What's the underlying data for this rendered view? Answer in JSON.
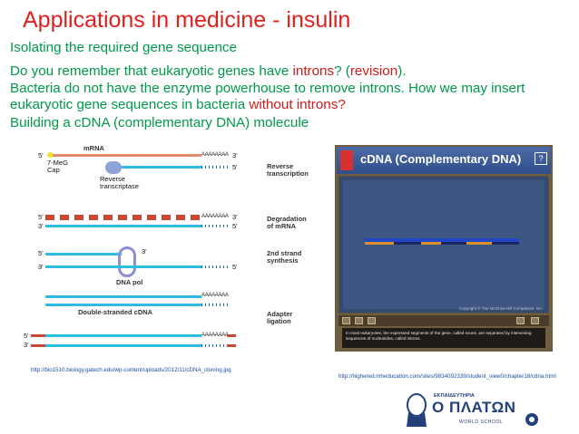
{
  "title": "Applications in medicine - insulin",
  "lines": {
    "l1": "Isolating the required gene sequence",
    "l2_pre": "Do you remember that eukaryotic genes have ",
    "l2_introns": "introns",
    "l2_mid": "? (",
    "l2_rev": "revision",
    "l2_post": ").",
    "l3": "Bacteria do not have the enzyme powerhouse to remove introns. How we may insert",
    "l4_pre": "eukaryotic gene sequences in bacteria ",
    "l4_red": "without introns?",
    "l5": "Building a cDNA (complementary DNA) molecule"
  },
  "fig_left": {
    "mrna": "mRNA",
    "cap": "7-MeG Cap",
    "reverse_transcriptase": "Reverse transcriptase",
    "reverse_transcription": "Reverse transcription",
    "degradation": "Degradation of mRNA",
    "second_strand": "2nd strand synthesis",
    "dna_pol": "DNA pol",
    "double_stranded": "Double-stranded cDNA",
    "adapter": "Adapter ligation",
    "polyA": "AAAAAAAA",
    "polyT": "TTTTTTTT",
    "five": "5'",
    "three": "3'"
  },
  "fig_right": {
    "title": "cDNA (Complementary DNA)",
    "help": "?",
    "copyright": "Copyright © The McGraw-Hill Companies, Inc.",
    "caption": "In most eukaryotes, the expressed segments of the gene, called exons, are separated by intervening sequences of nucleotides, called introns.",
    "controls": {
      "stop": "Stop",
      "play": "Play",
      "pause": "Pause",
      "audio": "Audio",
      "text": "Text"
    }
  },
  "url1": "http://bio1510.biology.gatech.edu/wp-content/uploads/2012/11/cDNA_cloning.jpg",
  "url2": "http://highered.mheducation.com/sites/9834092339/student_view0/chapter18/cdna.html",
  "logo": {
    "sub": "ΕΚΠΑΙΔΕΥΤΗΡΙΑ",
    "main": "Ο ΠΛΑΤΩΝ",
    "ws": "WORLD SCHOOL"
  },
  "colors": {
    "title": "#e0201d",
    "text": "#00994a",
    "accent": "#d11a1a"
  }
}
